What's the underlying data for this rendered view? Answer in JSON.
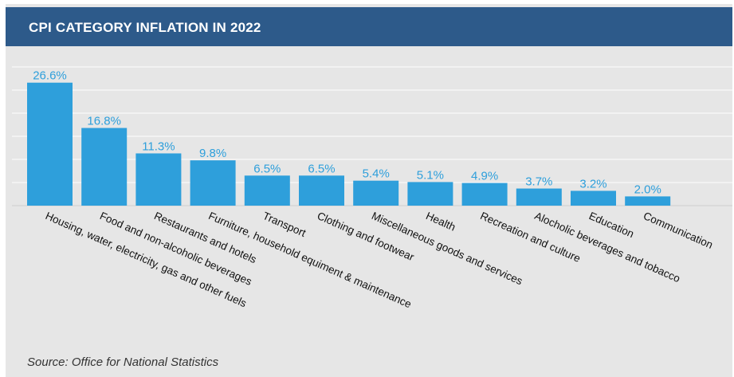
{
  "header": {
    "title": "CPI CATEGORY INFLATION IN 2022"
  },
  "footnote": "Source: Office for National Statistics",
  "colors": {
    "bar": "#2e9fdb",
    "label": "#2e9fdb",
    "header": "#2d5a8a",
    "background": "#e6e6e6",
    "grid": "#ffffff"
  },
  "chart_data": {
    "type": "bar",
    "title": "CPI CATEGORY INFLATION IN 2022",
    "xlabel": "",
    "ylabel": "",
    "ylim": [
      0,
      30
    ],
    "grid": true,
    "categories": [
      "Housing, water, electricity, gas and other fuels",
      "Food and non-alcoholic beverages",
      "Restaurants and hotels",
      "Furniture, household equiment & maintenance",
      "Transport",
      "Clothing and footwear",
      "Miscellaneous goods and services",
      "Health",
      "Recreation and culture",
      "Alocholic beverages and tobacco",
      "Education",
      "Communication"
    ],
    "values": [
      26.6,
      16.8,
      11.3,
      9.8,
      6.5,
      6.5,
      5.4,
      5.1,
      4.9,
      3.7,
      3.2,
      2.0
    ],
    "value_labels": [
      "26.6%",
      "16.8%",
      "11.3%",
      "9.8%",
      "6.5%",
      "6.5%",
      "5.4%",
      "5.1%",
      "4.9%",
      "3.7%",
      "3.2%",
      "2.0%"
    ]
  }
}
